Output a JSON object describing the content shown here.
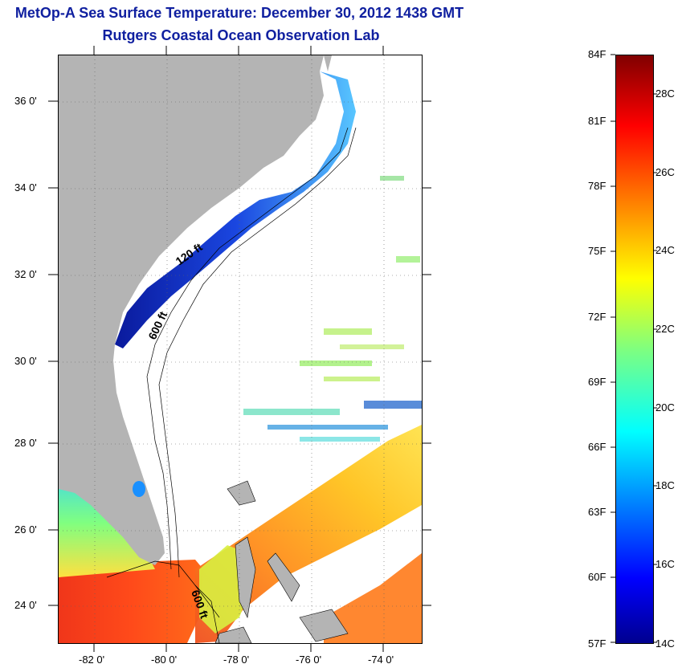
{
  "header": {
    "title": "MetOp-A Sea Surface Temperature:  December 30, 2012 1438 GMT",
    "subtitle": "Rutgers Coastal Ocean Observation Lab"
  },
  "map": {
    "lat_labels": [
      "36 0'",
      "34 0'",
      "32 0'",
      "30 0'",
      "28 0'",
      "26 0'",
      "24 0'"
    ],
    "lon_labels": [
      "-82 0'",
      "-80 0'",
      "-78 0'",
      "-76 0'",
      "-74 0'"
    ],
    "isobath_labels": [
      "120 ft",
      "600 ft",
      "600 ft"
    ],
    "land_color": "#b4b4b4",
    "cloud_color": "#ffffff"
  },
  "colorbar": {
    "f_labels": [
      "84F",
      "81F",
      "78F",
      "75F",
      "72F",
      "69F",
      "66F",
      "63F",
      "60F",
      "57F"
    ],
    "c_labels": [
      "28C",
      "26C",
      "24C",
      "22C",
      "20C",
      "18C",
      "16C",
      "14C"
    ],
    "colormap": "jet"
  }
}
